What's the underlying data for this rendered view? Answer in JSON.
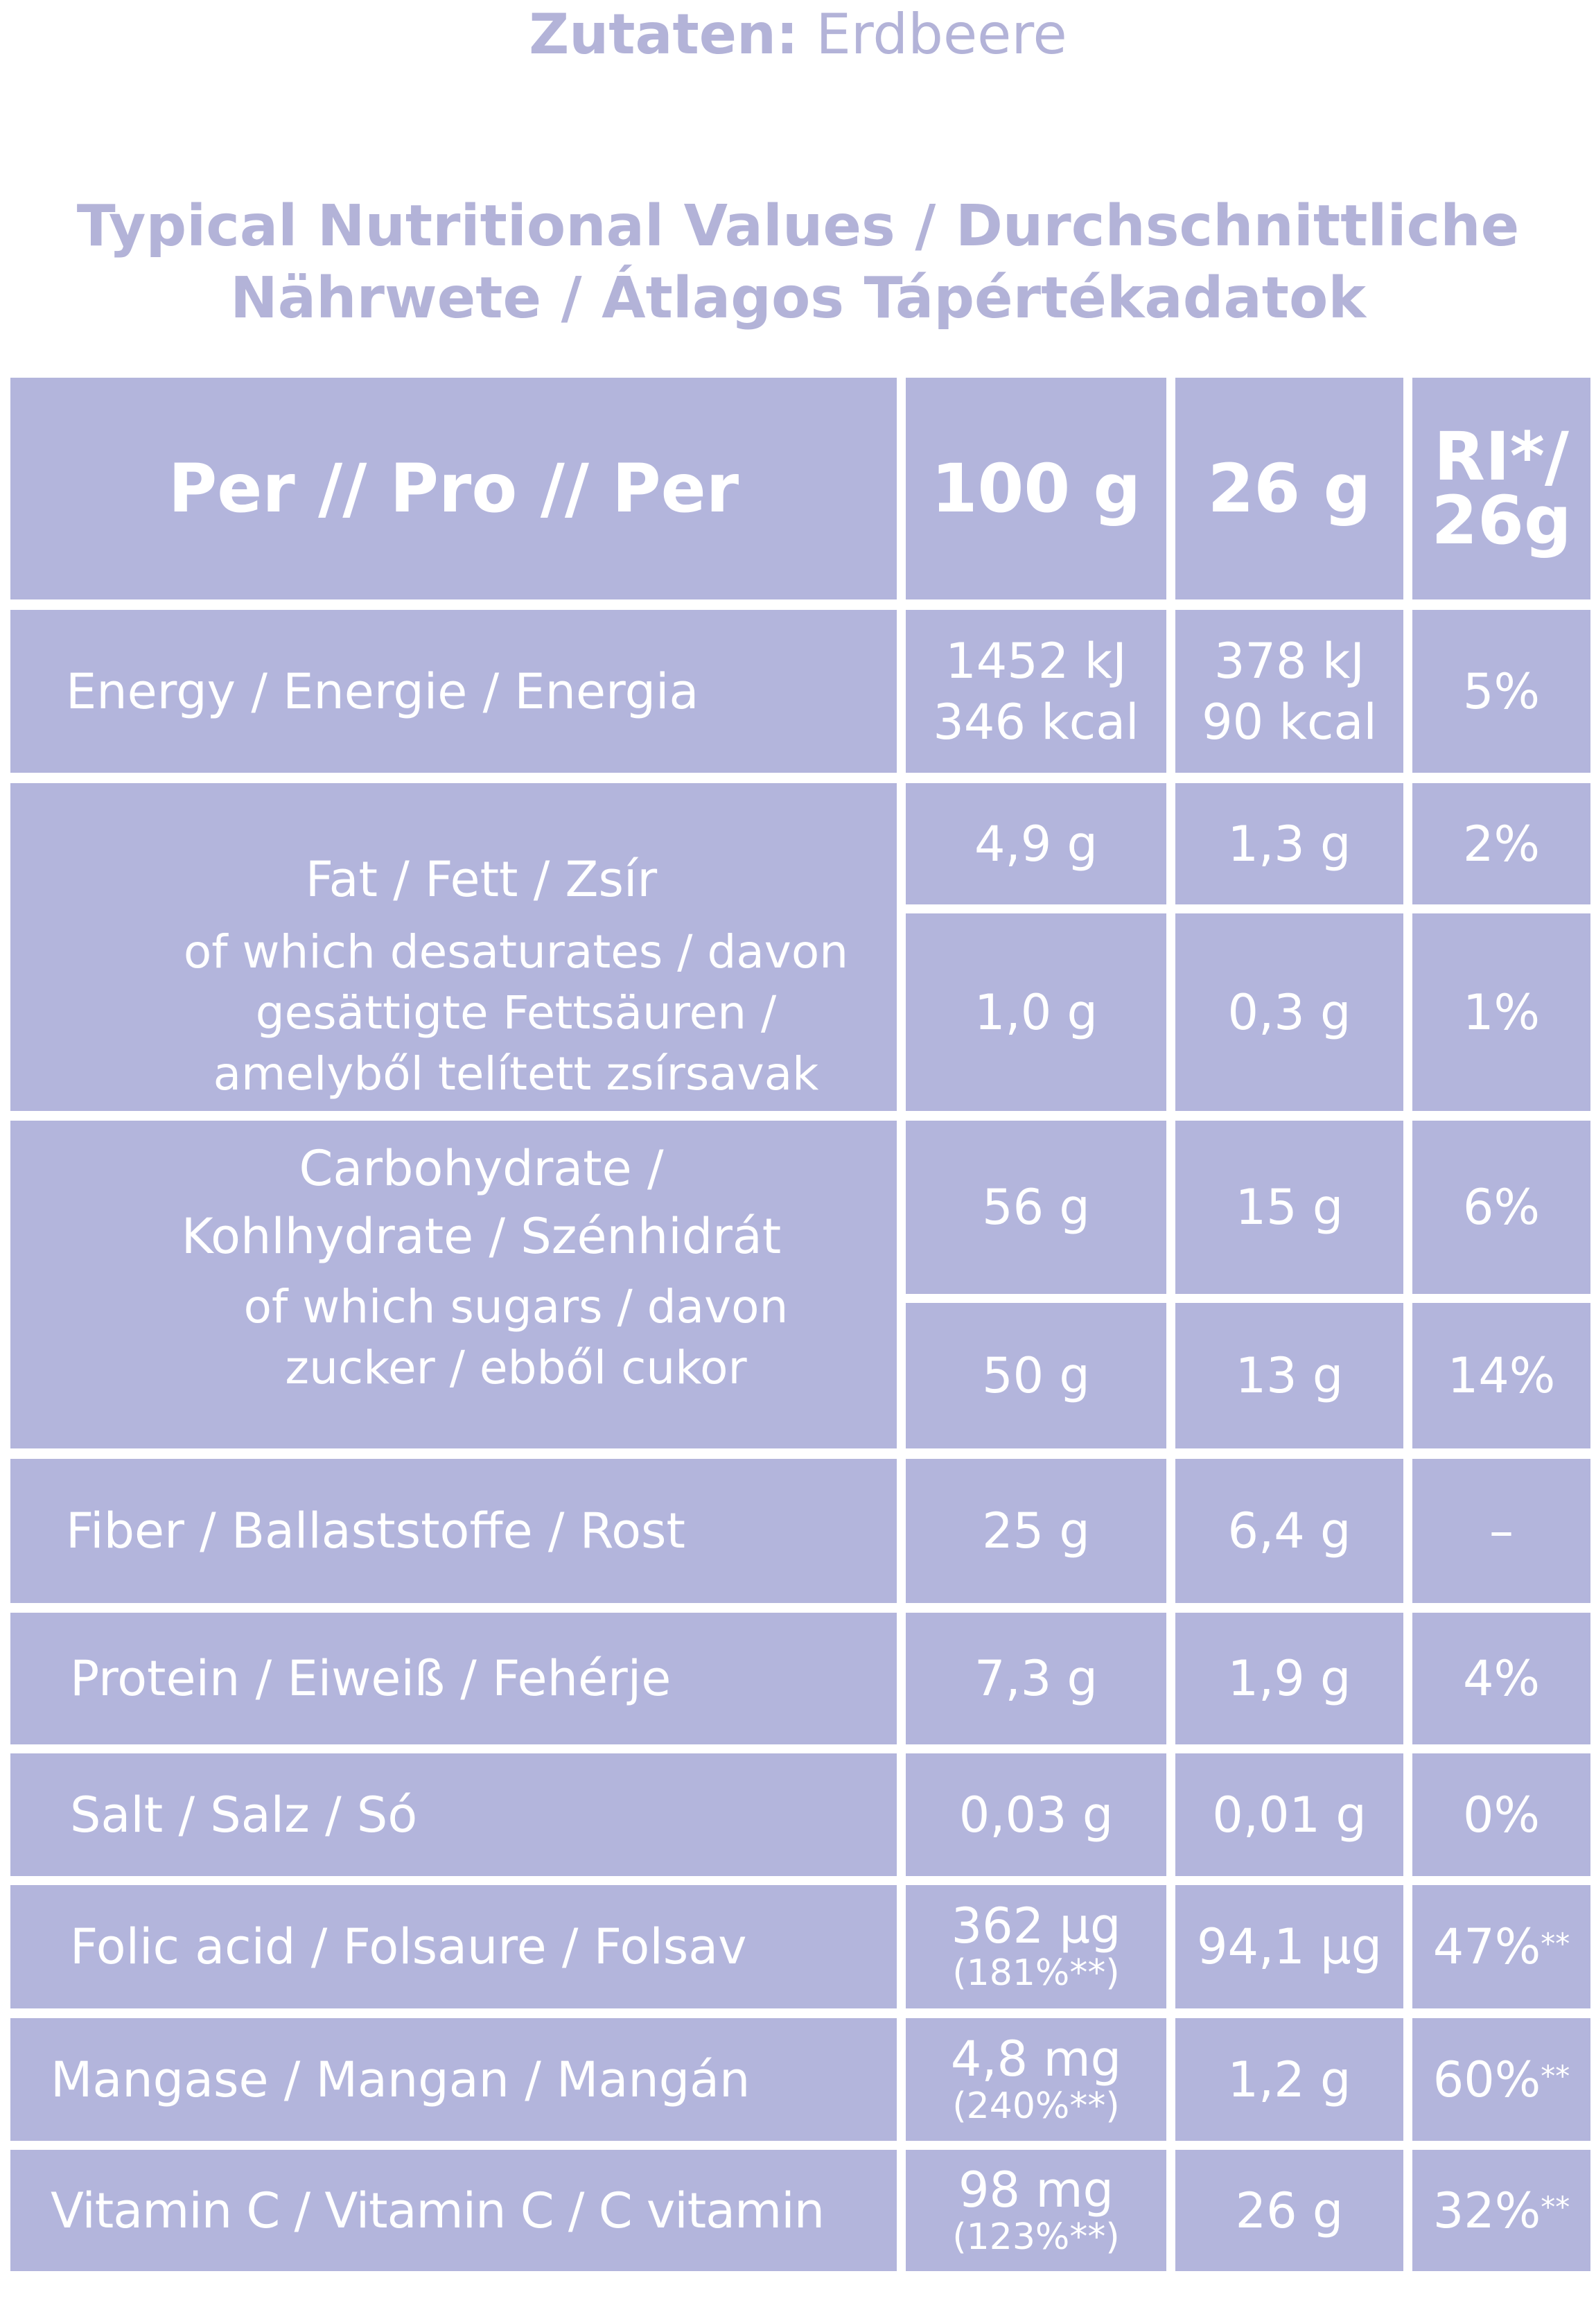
{
  "ingredients": {
    "label": "Zutaten:",
    "value": "Erdbeere"
  },
  "title": {
    "line1": "Typical Nutritional Values / Durchschnittliche",
    "line2": "Nährwete / Átlagos Tápértékadatok"
  },
  "header": {
    "per": "Per // Pro // Per",
    "col100": "100 g",
    "col26": "26 g",
    "ri_line1": "RI*/",
    "ri_line2": "26g"
  },
  "rows": {
    "energy": {
      "label": "Energy / Energie / Energia",
      "v100_l1": "1452 kJ",
      "v100_l2": "346 kcal",
      "v26_l1": "378 kJ",
      "v26_l2": "90 kcal",
      "ri": "5%"
    },
    "fat": {
      "label": "Fat / Fett / Zsír",
      "v100": "4,9 g",
      "v26": "1,3 g",
      "ri": "2%"
    },
    "saturates": {
      "label_l1": "of which desaturates / davon",
      "label_l2": "gesättigte Fettsäuren /",
      "label_l3": "amelyből telített zsírsavak",
      "v100": "1,0 g",
      "v26": "0,3 g",
      "ri": "1%"
    },
    "carbs": {
      "label_l1": "Carbohydrate /",
      "label_l2": "Kohlhydrate / Szénhidrát",
      "v100": "56 g",
      "v26": "15 g",
      "ri": "6%"
    },
    "sugars": {
      "label_l1": "of which sugars / davon",
      "label_l2": "zucker / ebből cukor",
      "v100": "50 g",
      "v26": "13 g",
      "ri": "14%"
    },
    "fiber": {
      "label": "Fiber / Ballaststoffe / Rost",
      "v100": "25 g",
      "v26": "6,4 g",
      "ri": "–"
    },
    "protein": {
      "label": "Protein / Eiweiß / Fehérje",
      "v100": "7,3 g",
      "v26": "1,9 g",
      "ri": "4%"
    },
    "salt": {
      "label": "Salt / Salz / Só",
      "v100": "0,03 g",
      "v26": "0,01 g",
      "ri": "0%"
    },
    "folic": {
      "label": "Folic acid / Folsaure / Folsav",
      "v100": "362 µg",
      "v100_note": "(181%**)",
      "v26": "94,1 µg",
      "ri": "47%",
      "ri_sup": "**"
    },
    "manganese": {
      "label": "Mangase / Mangan / Mangán",
      "v100": "4,8 mg",
      "v100_note": "(240%**)",
      "v26": "1,2 g",
      "ri": "60%",
      "ri_sup": "**"
    },
    "vitc": {
      "label": "Vitamin C / Vitamin C / C vitamin",
      "v100": "98 mg",
      "v100_note": "(123%**)",
      "v26": "26 g",
      "ri": "32%",
      "ri_sup": "**"
    }
  },
  "colors": {
    "cell": "#b3b5dc",
    "heading": "#b3b3d8",
    "text": "#ffffff"
  }
}
